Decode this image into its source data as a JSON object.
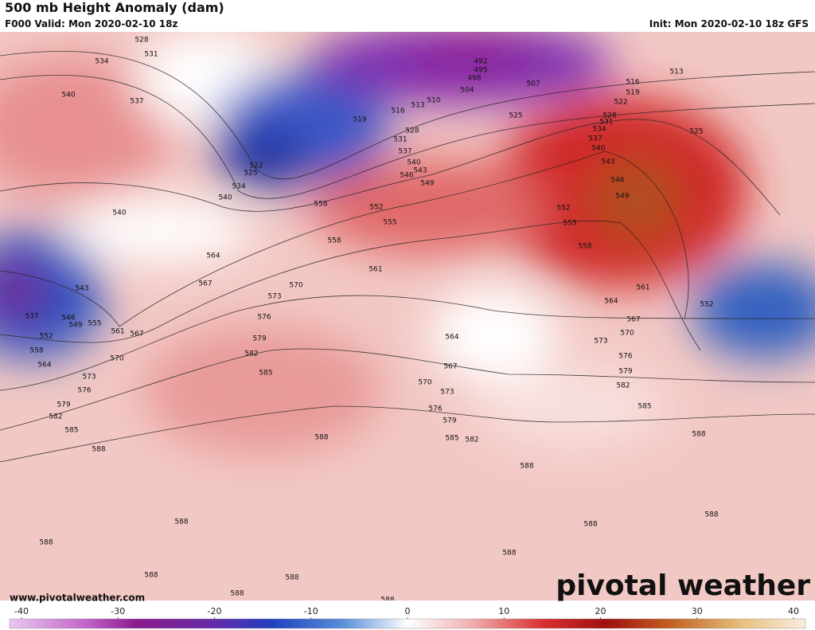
{
  "header": {
    "title": "500 mb Height Anomaly (dam)",
    "valid": "F000 Valid: Mon 2020-02-10 18z",
    "init": "Init: Mon 2020-02-10 18z GFS"
  },
  "map": {
    "contour_labels": [
      "528",
      "531",
      "534",
      "540",
      "537",
      "540",
      "543",
      "537",
      "546",
      "549",
      "552",
      "555",
      "558",
      "561",
      "567",
      "564",
      "570",
      "573",
      "576",
      "579",
      "582",
      "585",
      "588",
      "522",
      "525",
      "534",
      "540",
      "519",
      "516",
      "513",
      "510",
      "504",
      "498",
      "495",
      "492",
      "507",
      "513",
      "516",
      "519",
      "522",
      "525",
      "525",
      "528",
      "531",
      "537",
      "540",
      "543",
      "546",
      "549",
      "528",
      "531",
      "534",
      "537",
      "540",
      "543",
      "546",
      "549",
      "552",
      "555",
      "558",
      "561",
      "552",
      "564",
      "567",
      "570",
      "573",
      "576",
      "579",
      "582",
      "585",
      "588",
      "588",
      "588",
      "588",
      "588",
      "588",
      "588",
      "588",
      "588",
      "588",
      "588",
      "588",
      "585",
      "582",
      "579",
      "576",
      "573",
      "570",
      "567",
      "564",
      "561",
      "558",
      "555",
      "552",
      "558",
      "564",
      "567",
      "570",
      "573",
      "576",
      "579",
      "582",
      "585"
    ]
  },
  "footer": {
    "website": "www.pivotalweather.com",
    "logo": "pivotal weather"
  },
  "colorbar": {
    "lim": [
      -40,
      40
    ],
    "ticks": [
      -40,
      -30,
      -20,
      -10,
      0,
      10,
      20,
      30,
      40
    ]
  }
}
